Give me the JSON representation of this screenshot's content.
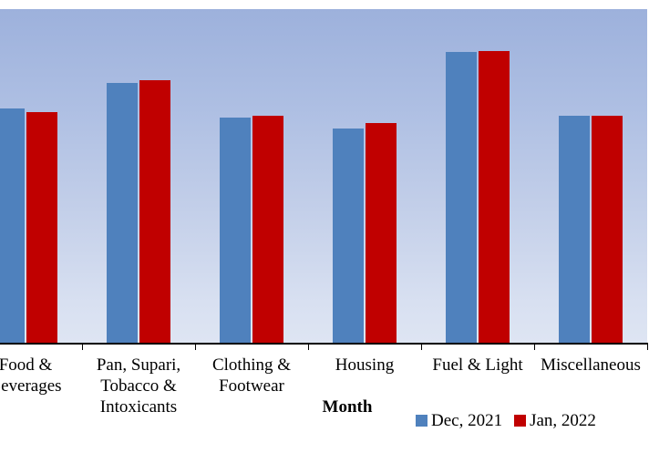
{
  "chart_data": {
    "type": "bar",
    "title": "",
    "xlabel": "Month",
    "ylabel": "",
    "categories": [
      "Food & Beverages",
      "Pan, Supari, Tobacco & Intoxicants",
      "Clothing & Footwear",
      "Housing",
      "Fuel & Light",
      "Miscellaneous"
    ],
    "category_label_lines": [
      [
        "Food &",
        "Beverages"
      ],
      [
        "Pan, Supari,",
        "Tobacco &",
        "Intoxicants"
      ],
      [
        "Clothing &",
        "Footwear"
      ],
      [
        "Housing"
      ],
      [
        "Fuel & Light"
      ],
      [
        "Miscellaneous"
      ]
    ],
    "series": [
      {
        "name": "Dec, 2021",
        "color": "#4F81BD",
        "values": [
          70.2,
          77.9,
          67.5,
          64.2,
          87.2,
          68.0
        ]
      },
      {
        "name": "Jan, 2022",
        "color": "#C00000",
        "values": [
          69.1,
          78.7,
          68.0,
          65.8,
          87.4,
          68.0
        ]
      }
    ],
    "value_unit": "percent of visible plot height (numeric y-axis cropped out of screenshot on left edge)",
    "ylim": [
      0,
      100
    ],
    "grid": false,
    "legend_position": "bottom-right",
    "crop_note": "Chart cropped at left: first category bars and label partially cut off"
  },
  "colors": {
    "series_dec_2021": "#4F81BD",
    "series_jan_2022": "#C00000",
    "plot_bg_top": "#9DB1DC",
    "plot_bg_bottom": "#DEE5F3",
    "axis": "#000000",
    "text": "#000000",
    "page_bg": "#FFFFFF"
  }
}
